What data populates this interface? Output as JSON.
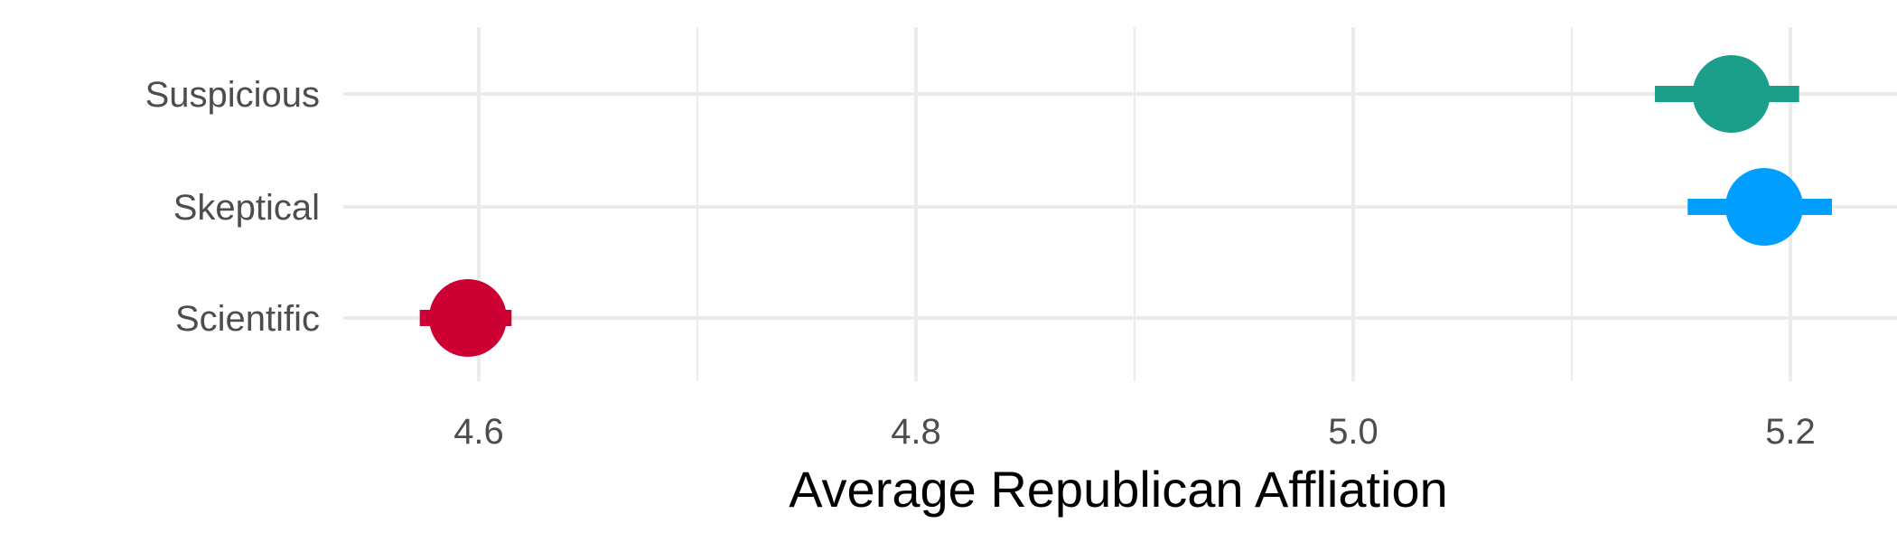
{
  "chart_data": {
    "type": "scatter",
    "title": "",
    "xlabel": "Average Republican Affliation",
    "ylabel": "",
    "xlim": [
      4.52,
      5.24
    ],
    "x_ticks": [
      "4.6",
      "4.8",
      "5.0",
      "5.2"
    ],
    "x_tick_values": [
      4.6,
      4.8,
      5.0,
      5.2
    ],
    "x_minor_grid": [
      4.7,
      4.9,
      5.1
    ],
    "categories": [
      "Suspicious",
      "Skeptical",
      "Scientific"
    ],
    "points": [
      {
        "category": "Suspicious",
        "value": 5.173,
        "ci_low": 5.138,
        "ci_high": 5.204,
        "color": "#1b9e8a"
      },
      {
        "category": "Skeptical",
        "value": 5.188,
        "ci_low": 5.153,
        "ci_high": 5.219,
        "color": "#009fff"
      },
      {
        "category": "Scientific",
        "value": 4.595,
        "ci_low": 4.573,
        "ci_high": 4.615,
        "color": "#cc0033"
      }
    ],
    "grid": true,
    "legend": "none",
    "colors": {
      "grid": "#ebebeb",
      "tick_text": "#4d4d4d",
      "title_text": "#000000"
    }
  }
}
